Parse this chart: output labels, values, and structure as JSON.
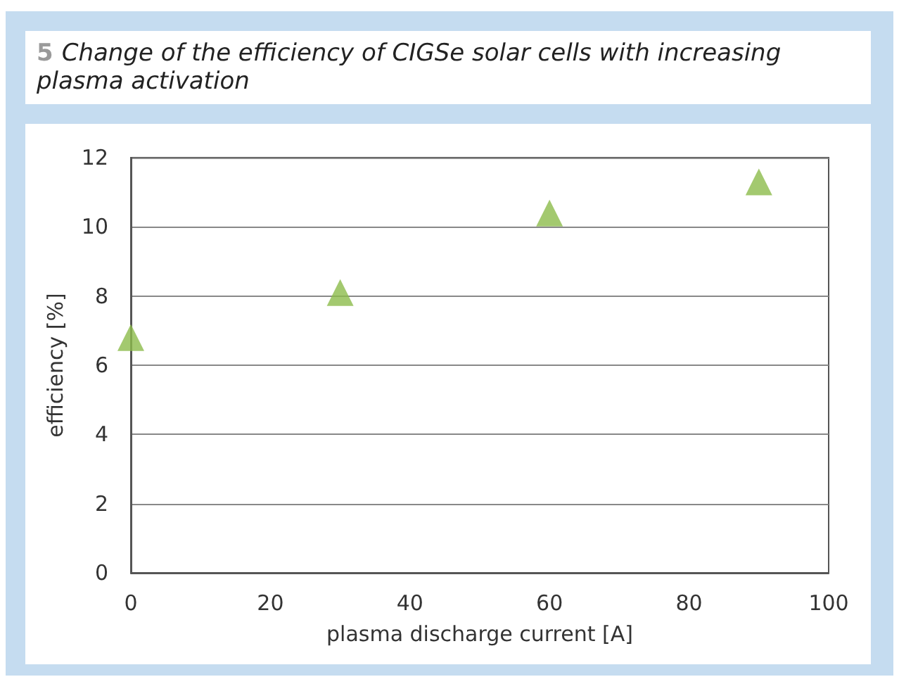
{
  "chart_data": {
    "type": "scatter",
    "title": "5 Change of the efficiency of CIGSe solar cells with increasing plasma activation",
    "xlabel": "plasma discharge current [A]",
    "ylabel": "efficiency [%]",
    "x": [
      0,
      30,
      60,
      90
    ],
    "series": [
      {
        "color": "#8cbb4b",
        "values": [
          6.8,
          8.1,
          10.4,
          11.3
        ]
      }
    ],
    "xlim": [
      0,
      100
    ],
    "xticks": [
      0,
      20,
      40,
      60,
      80,
      100
    ],
    "ylim": [
      0,
      12
    ],
    "yticks": [
      0,
      2,
      4,
      6,
      8,
      10,
      12
    ],
    "grid": "y",
    "marker": "triangle"
  }
}
